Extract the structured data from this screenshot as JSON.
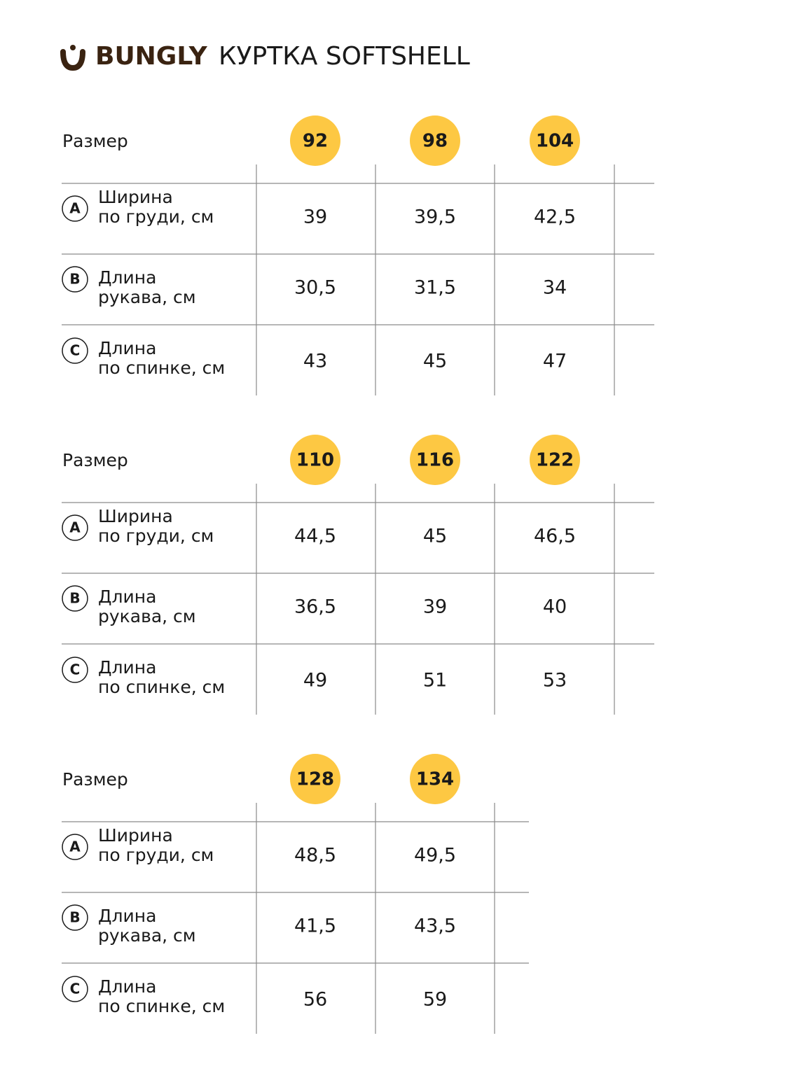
{
  "header": {
    "brand": "BUNGLY",
    "title": "КУРТКА SOFTSHELL"
  },
  "tables": [
    {
      "size_label": "Размер",
      "sizes": [
        "92",
        "98",
        "104"
      ],
      "rows": [
        {
          "letter": "A",
          "label": [
            "Ширина",
            "по груди, см"
          ],
          "values": [
            "39",
            "39,5",
            "42,5"
          ]
        },
        {
          "letter": "B",
          "label": [
            "Длина",
            "рукава, см"
          ],
          "values": [
            "30,5",
            "31,5",
            "34"
          ]
        },
        {
          "letter": "C",
          "label": [
            "Длина",
            "по спинке, см"
          ],
          "values": [
            "43",
            "45",
            "47"
          ]
        }
      ]
    },
    {
      "size_label": "Размер",
      "sizes": [
        "110",
        "116",
        "122"
      ],
      "rows": [
        {
          "letter": "A",
          "label": [
            "Ширина",
            "по груди, см"
          ],
          "values": [
            "44,5",
            "45",
            "46,5"
          ]
        },
        {
          "letter": "B",
          "label": [
            "Длина",
            "рукава, см"
          ],
          "values": [
            "36,5",
            "39",
            "40"
          ]
        },
        {
          "letter": "C",
          "label": [
            "Длина",
            "по спинке, см"
          ],
          "values": [
            "49",
            "51",
            "53"
          ]
        }
      ]
    },
    {
      "size_label": "Размер",
      "sizes": [
        "128",
        "134"
      ],
      "rows": [
        {
          "letter": "A",
          "label": [
            "Ширина",
            "по груди, см"
          ],
          "values": [
            "48,5",
            "49,5"
          ]
        },
        {
          "letter": "B",
          "label": [
            "Длина",
            "рукава, см"
          ],
          "values": [
            "41,5",
            "43,5"
          ]
        },
        {
          "letter": "C",
          "label": [
            "Длина",
            "по спинке, см"
          ],
          "values": [
            "56",
            "59"
          ]
        }
      ]
    }
  ]
}
